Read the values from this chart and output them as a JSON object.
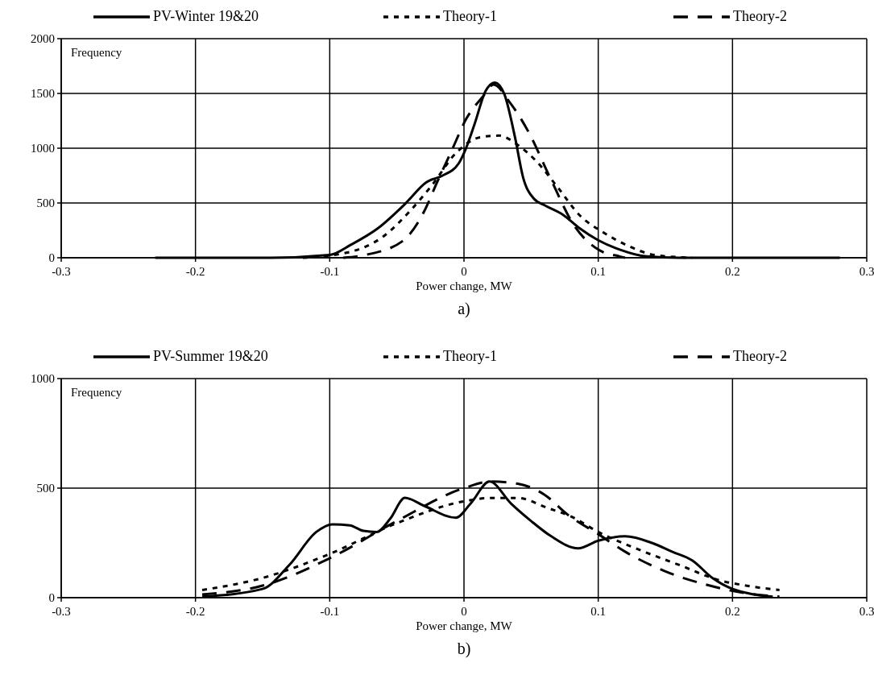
{
  "chart_data": [
    {
      "type": "line",
      "xlabel": "Power change, MW",
      "ylabel": "Frequency",
      "annotations": [
        "a)"
      ],
      "xlim": [
        -0.3,
        0.3
      ],
      "xticks": [
        -0.3,
        -0.2,
        -0.1,
        0,
        0.1,
        0.2,
        0.3
      ],
      "ylim": [
        0,
        2000
      ],
      "yticks": [
        0,
        500,
        1000,
        1500,
        2000
      ],
      "grid": true,
      "legend": "top",
      "marker": "none",
      "series": [
        {
          "name": "PV-Winter 19&20",
          "color": "#000000",
          "line_style": "solid",
          "x": [
            -0.23,
            -0.144,
            -0.1,
            -0.084,
            -0.064,
            -0.044,
            -0.028,
            -0.016,
            -0.004,
            0,
            0.008,
            0.016,
            0.023,
            0.03,
            0.038,
            0.044,
            0.052,
            0.06,
            0.074,
            0.086,
            0.1,
            0.116,
            0.136,
            0.16,
            0.28
          ],
          "values": [
            0,
            0,
            25,
            120,
            270,
            490,
            690,
            750,
            860,
            955,
            1225,
            1520,
            1600,
            1495,
            1100,
            735,
            540,
            480,
            390,
            270,
            160,
            75,
            12,
            0,
            0
          ]
        },
        {
          "name": "Theory-1",
          "color": "#000000",
          "line_style": "dotted",
          "x": [
            -0.12,
            -0.086,
            -0.06,
            -0.04,
            -0.024,
            -0.006,
            0.012,
            0.026,
            0.04,
            0.054,
            0.07,
            0.086,
            0.104,
            0.122,
            0.142,
            0.17
          ],
          "values": [
            0,
            50,
            195,
            430,
            660,
            955,
            1100,
            1115,
            1030,
            880,
            640,
            390,
            230,
            110,
            25,
            0
          ]
        },
        {
          "name": "Theory-2",
          "color": "#000000",
          "line_style": "dashed",
          "x": [
            -0.09,
            -0.074,
            -0.046,
            -0.03,
            -0.02,
            -0.01,
            0.002,
            0.014,
            0.022,
            0.034,
            0.048,
            0.064,
            0.082,
            0.1,
            0.116,
            0.12
          ],
          "values": [
            0,
            25,
            150,
            415,
            690,
            955,
            1275,
            1470,
            1580,
            1420,
            1150,
            735,
            295,
            75,
            12,
            0
          ]
        }
      ]
    },
    {
      "type": "line",
      "xlabel": "Power change, MW",
      "ylabel": "Frequency",
      "annotations": [
        "b)"
      ],
      "xlim": [
        -0.3,
        0.3
      ],
      "xticks": [
        -0.3,
        -0.2,
        -0.1,
        0,
        0.1,
        0.2,
        0.3
      ],
      "ylim": [
        0,
        1000
      ],
      "yticks": [
        0,
        500,
        1000
      ],
      "grid": true,
      "legend": "top",
      "marker": "none",
      "series": [
        {
          "name": "PV-Summer 19&20",
          "color": "#000000",
          "line_style": "solid",
          "x": [
            -0.195,
            -0.15,
            -0.13,
            -0.11,
            -0.098,
            -0.085,
            -0.075,
            -0.065,
            -0.055,
            -0.044,
            -0.03,
            -0.006,
            0.005,
            0.019,
            0.035,
            0.05,
            0.065,
            0.085,
            0.1,
            0.12,
            0.14,
            0.155,
            0.17,
            0.185,
            0.2,
            0.23
          ],
          "values": [
            5,
            40,
            150,
            300,
            335,
            330,
            305,
            300,
            360,
            456,
            420,
            365,
            430,
            530,
            430,
            350,
            280,
            225,
            260,
            280,
            250,
            210,
            170,
            90,
            40,
            5
          ]
        },
        {
          "name": "Theory-1",
          "color": "#000000",
          "line_style": "dotted",
          "x": [
            -0.195,
            -0.15,
            -0.1,
            -0.05,
            0,
            0.02,
            0.04,
            0.062,
            0.08,
            0.1,
            0.13,
            0.16,
            0.19,
            0.21,
            0.235
          ],
          "values": [
            35,
            90,
            200,
            340,
            440,
            455,
            455,
            410,
            370,
            300,
            220,
            150,
            80,
            55,
            35
          ]
        },
        {
          "name": "Theory-2",
          "color": "#000000",
          "line_style": "dashed",
          "x": [
            -0.195,
            -0.15,
            -0.1,
            -0.05,
            0,
            0.02,
            0.04,
            0.06,
            0.077,
            0.1,
            0.12,
            0.15,
            0.18,
            0.21,
            0.235
          ],
          "values": [
            15,
            55,
            180,
            350,
            500,
            530,
            520,
            470,
            380,
            290,
            210,
            120,
            60,
            20,
            5
          ]
        }
      ]
    }
  ]
}
